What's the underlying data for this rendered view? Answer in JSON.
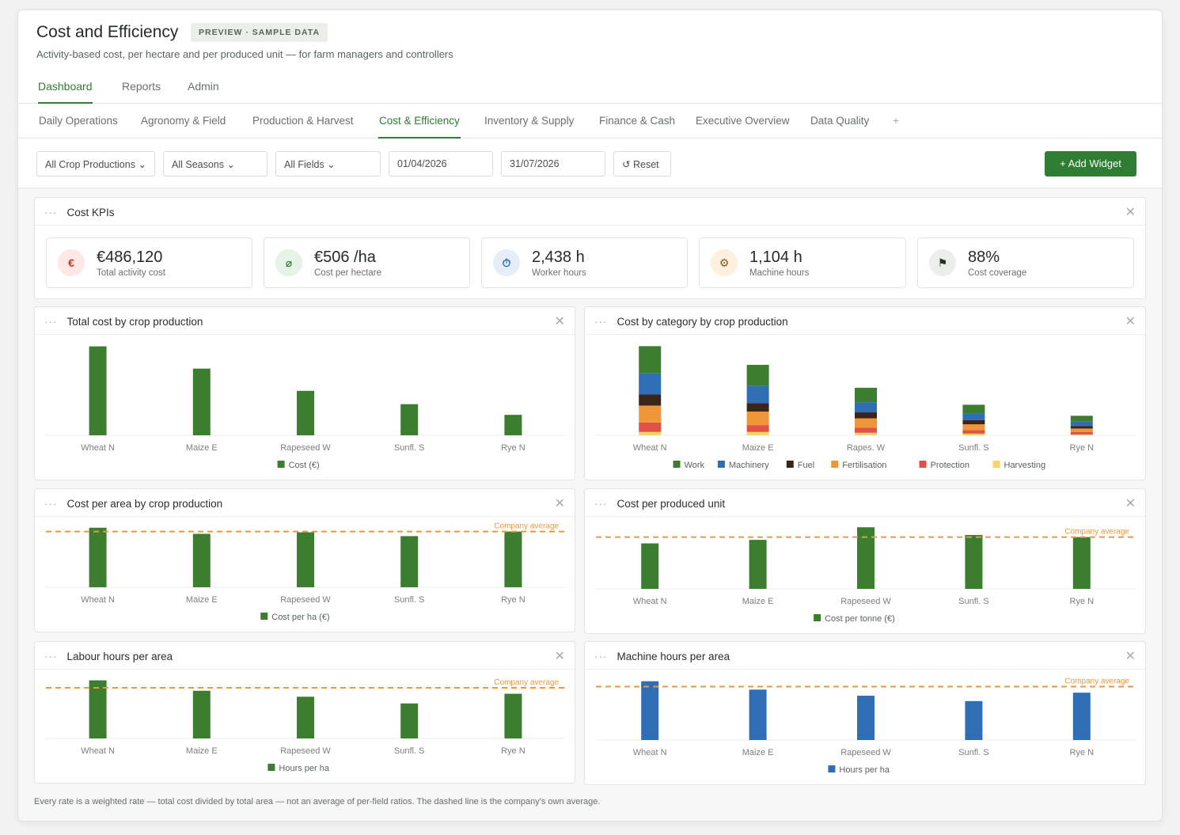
{
  "header": {
    "title": "Cost and Efficiency",
    "badge": "PREVIEW · SAMPLE DATA",
    "subtitle": "Activity-based cost, per hectare and per produced unit — for farm managers and controllers"
  },
  "main_tabs": [
    "Dashboard",
    "Reports",
    "Admin"
  ],
  "sub_tabs": [
    "Daily Operations",
    "Agronomy & Field",
    "Production & Harvest",
    "Cost & Efficiency",
    "Inventory & Supply",
    "Finance & Cash",
    "Executive Overview",
    "Data Quality",
    "+"
  ],
  "filters": {
    "crop": "All Crop Productions",
    "season": "All Seasons",
    "field": "All Fields",
    "date_from": "01/04/2026",
    "date_to": "31/07/2026",
    "reset": "Reset"
  },
  "add_widget": "+ Add Widget",
  "kpis": {
    "title": "Cost KPIs",
    "items": [
      {
        "icon": "euro-icon",
        "glyph": "€",
        "value": "€486,120",
        "label": "Total activity cost",
        "bg": "#fde8e6",
        "fg": "#c0392b"
      },
      {
        "icon": "area-icon",
        "glyph": "⌀",
        "value": "€506 /ha",
        "label": "Cost per hectare",
        "bg": "#e6f2e6",
        "fg": "#2e7d32"
      },
      {
        "icon": "clock-icon",
        "glyph": "⏱",
        "value": "2,438 h",
        "label": "Worker hours",
        "bg": "#e6edf7",
        "fg": "#2f6db5"
      },
      {
        "icon": "gear-icon",
        "glyph": "⚙",
        "value": "1,104 h",
        "label": "Machine hours",
        "bg": "#fdf0de",
        "fg": "#8a5a14"
      },
      {
        "icon": "flag-icon",
        "glyph": "⚑",
        "value": "88%",
        "label": "Cost coverage",
        "bg": "#eceeec",
        "fg": "#2a2f2b"
      }
    ]
  },
  "widgets": [
    {
      "title": "Total cost by crop production",
      "chart_data": {
        "type": "bar",
        "categories": [
          "Wheat N",
          "Maize E",
          "Rapeseed W",
          "Sunfl. S",
          "Rye N"
        ],
        "series": [
          {
            "name": "Cost (€)",
            "color": "#3d7d2f",
            "values": [
              100,
              75,
              50,
              35,
              23
            ]
          }
        ],
        "ylim": [
          0,
          105
        ],
        "avg_label": ""
      }
    },
    {
      "title": "Cost by category by crop production",
      "chart_data": {
        "type": "bar",
        "stacked": true,
        "categories": [
          "Wheat N",
          "Maize E",
          "Rapes. W",
          "Sunfl. S",
          "Rye N"
        ],
        "series": [
          {
            "name": "Work",
            "color": "#3d7d2f",
            "values": [
              32,
              25,
              17,
              10,
              7
            ]
          },
          {
            "name": "Machinery",
            "color": "#2f6db5",
            "values": [
              25,
              20,
              12,
              8,
              5
            ]
          },
          {
            "name": "Fuel",
            "color": "#3b2419",
            "values": [
              13,
              10,
              7,
              5,
              3
            ]
          },
          {
            "name": "Fertilisation",
            "color": "#f0963a",
            "values": [
              20,
              16,
              11,
              7,
              4
            ]
          },
          {
            "name": "Protection",
            "color": "#e05245",
            "values": [
              11,
              8,
              6,
              4,
              3
            ]
          },
          {
            "name": "Harvesting",
            "color": "#f7d36b",
            "values": [
              4,
              4,
              3,
              2,
              1
            ]
          }
        ],
        "ylim": [
          0,
          110
        ],
        "avg_label": ""
      }
    },
    {
      "title": "Cost per area by crop production",
      "chart_data": {
        "type": "bar",
        "categories": [
          "Wheat N",
          "Maize E",
          "Rapeseed W",
          "Sunfl. S",
          "Rye N"
        ],
        "series": [
          {
            "name": "Cost per ha (€)",
            "color": "#3d7d2f",
            "values": [
              78,
              70,
              72,
              67,
              73
            ]
          }
        ],
        "ylim": [
          0,
          85
        ],
        "average": 73,
        "avg_label": "Company average"
      }
    },
    {
      "title": "Cost per produced unit",
      "chart_data": {
        "type": "bar",
        "categories": [
          "Wheat N",
          "Maize E",
          "Rapeseed W",
          "Sunfl. S",
          "Rye N"
        ],
        "series": [
          {
            "name": "Cost per tonne (€)",
            "color": "#3d7d2f",
            "values": [
              65,
              70,
              88,
              77,
              74
            ]
          }
        ],
        "ylim": [
          0,
          95
        ],
        "average": 74,
        "avg_label": "Company average"
      }
    },
    {
      "title": "Labour hours per area",
      "chart_data": {
        "type": "bar",
        "categories": [
          "Wheat N",
          "Maize E",
          "Rapeseed W",
          "Sunfl. S",
          "Rye N"
        ],
        "series": [
          {
            "name": "Hours per ha",
            "color": "#3d7d2f",
            "values": [
              78,
              64,
              56,
              47,
              60
            ]
          }
        ],
        "ylim": [
          0,
          85
        ],
        "average": 68,
        "avg_label": "Company average"
      }
    },
    {
      "title": "Machine hours per area",
      "chart_data": {
        "type": "bar",
        "categories": [
          "Wheat N",
          "Maize E",
          "Rapeseed W",
          "Sunfl. S",
          "Rye N"
        ],
        "series": [
          {
            "name": "Hours per ha",
            "color": "#2f6db5",
            "values": [
              77,
              66,
              58,
              51,
              62
            ]
          }
        ],
        "ylim": [
          0,
          85
        ],
        "average": 70,
        "avg_label": "Company average"
      }
    }
  ],
  "footnote": "Every rate is a weighted rate — total cost divided by total area — not an average of per-field ratios. The dashed line is the company's own average."
}
